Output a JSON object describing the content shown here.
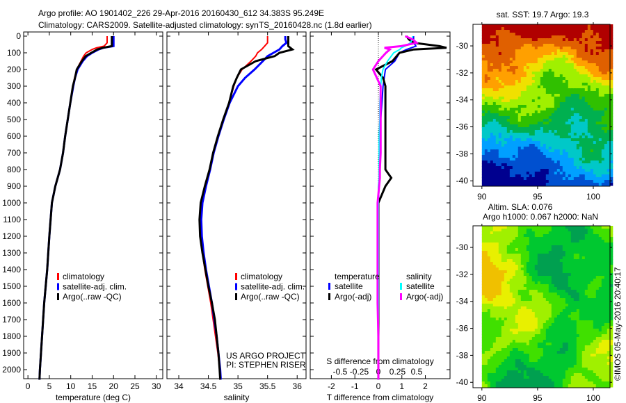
{
  "header": {
    "line1": "Argo profile: AO 1901402_226 29-Apr-2016 20160430_612 34.383S 95.249E",
    "line2": "Climatology: CARS2009. Satellite-adjusted climatology: synTS_20160428.nc (1.8d earlier)"
  },
  "credits": {
    "project": "US ARGO PROJECT",
    "pi": "PI: STEPHEN RISER",
    "copyright": "©IMOS 05-May-2016 20:40:17"
  },
  "colors": {
    "clim": "#ff0000",
    "sat": "#0000ff",
    "argo": "#000000",
    "sat_s": "#00ffff",
    "argo_s": "#ff00ff"
  },
  "chart_data": [
    {
      "type": "line",
      "name": "temperature",
      "xlabel": "temperature (deg C)",
      "ylabel": "",
      "xlim": [
        -1,
        31.5
      ],
      "ylim": [
        2070,
        0
      ],
      "xticks": [
        0,
        5,
        10,
        15,
        20,
        25,
        30
      ],
      "yticks": [
        0,
        100,
        200,
        300,
        400,
        500,
        600,
        700,
        800,
        900,
        1000,
        1100,
        1200,
        1300,
        1400,
        1500,
        1600,
        1700,
        1800,
        1900,
        2000
      ],
      "depth": [
        0,
        20,
        40,
        60,
        70,
        80,
        100,
        120,
        150,
        200,
        250,
        300,
        400,
        500,
        600,
        700,
        800,
        900,
        1000,
        1200,
        1400,
        1600,
        1800,
        2000,
        2060
      ],
      "legend": [
        "climatology",
        "satellite-adj. clim.",
        "Argo(..raw -QC)"
      ],
      "series": [
        {
          "name": "climatology",
          "values": [
            18.5,
            18.5,
            18.5,
            17.8,
            16,
            15,
            13.6,
            13,
            12.4,
            11.4,
            10.9,
            10.5,
            9.9,
            9.3,
            8.7,
            8.2,
            7.5,
            6.4,
            5.6,
            5,
            4.5,
            3.8,
            3.3,
            2.8,
            2.7
          ]
        },
        {
          "name": "satellite-adj. clim.",
          "values": [
            20,
            20,
            20,
            20,
            17.6,
            16.5,
            15,
            13.8,
            12.8,
            11.6,
            11,
            10.6,
            9.9,
            9.3,
            8.7,
            8.2,
            7.5,
            6.4,
            5.6,
            5,
            4.5,
            3.8,
            3.3,
            2.8,
            2.7
          ]
        },
        {
          "name": "Argo(..raw -QC)",
          "values": [
            19.6,
            19.6,
            19.6,
            19.6,
            17.5,
            16.2,
            14.8,
            13.5,
            12.6,
            11.4,
            11,
            10.5,
            9.9,
            9.3,
            8.7,
            8.2,
            7.5,
            6.4,
            5.6,
            5,
            4.5,
            3.8,
            3.3,
            2.8,
            2.7
          ]
        }
      ]
    },
    {
      "type": "line",
      "name": "salinity",
      "xlabel": "salinity",
      "xlim": [
        33.8,
        36.15
      ],
      "ylim": [
        2070,
        0
      ],
      "xticks": [
        34,
        34.5,
        35,
        35.5,
        36
      ],
      "depth": [
        0,
        20,
        40,
        60,
        80,
        100,
        120,
        150,
        200,
        250,
        300,
        400,
        500,
        600,
        700,
        800,
        900,
        1000,
        1100,
        1200,
        1300,
        1400,
        1500,
        1600,
        1700,
        1800,
        1900,
        2000,
        2060
      ],
      "legend": [
        "climatology",
        "satellite-adj. clim.",
        "Argo(..raw -QC)"
      ],
      "series": [
        {
          "name": "climatology",
          "values": [
            35.5,
            35.5,
            35.5,
            35.45,
            35.4,
            35.33,
            35.3,
            35.22,
            35.07,
            34.98,
            34.93,
            34.85,
            34.75,
            34.66,
            34.58,
            34.52,
            34.45,
            34.38,
            34.36,
            34.37,
            34.4,
            34.44,
            34.49,
            34.54,
            34.58,
            34.62,
            34.66,
            34.69,
            34.7
          ]
        },
        {
          "name": "satellite-adj. clim.",
          "values": [
            35.8,
            35.8,
            35.82,
            35.75,
            35.7,
            35.6,
            35.5,
            35.42,
            35.28,
            35.12,
            35.0,
            34.86,
            34.76,
            34.67,
            34.59,
            34.53,
            34.46,
            34.4,
            34.38,
            34.39,
            34.42,
            34.46,
            34.51,
            34.56,
            34.6,
            34.64,
            34.67,
            34.7,
            34.71
          ]
        },
        {
          "name": "Argo(..raw -QC)",
          "values": [
            35.85,
            35.85,
            35.85,
            35.85,
            35.92,
            35.7,
            35.62,
            35.3,
            35.05,
            34.98,
            34.92,
            34.85,
            34.75,
            34.66,
            34.58,
            34.52,
            34.44,
            34.37,
            34.35,
            34.36,
            34.4,
            34.45,
            34.5,
            34.56,
            34.61,
            34.64,
            34.67,
            34.69,
            34.7
          ]
        }
      ]
    },
    {
      "type": "line",
      "name": "difference",
      "xlabel": "T difference from climatology",
      "x2label": "S difference from climatology",
      "xlim": [
        -2.9,
        3.05
      ],
      "xticks": [
        -2,
        -1,
        0,
        1,
        2
      ],
      "s_xticks": [
        -0.5,
        -0.25,
        0,
        0.25,
        0.5
      ],
      "s_xtick_labels": [
        "-0.5",
        "-0.25",
        "0",
        "0.25",
        "0.5"
      ],
      "depth": [
        0,
        20,
        40,
        60,
        70,
        80,
        100,
        150,
        200,
        250,
        300,
        400,
        500,
        600,
        700,
        800,
        850,
        900,
        1000,
        1200,
        1400,
        1600,
        1800,
        2000,
        2060
      ],
      "legend": {
        "temperature_title": "temperature",
        "salinity_title": "salinity",
        "items": [
          "satellite",
          "Argo(-adj)",
          "satellite",
          "Argo(-adj)"
        ]
      },
      "series": [
        {
          "name": "temperature satellite",
          "axis": "T",
          "values": [
            1.5,
            1.5,
            1.5,
            1.6,
            1.4,
            1.2,
            0.9,
            0.7,
            0.3,
            0.25,
            0.2,
            0.15,
            0.1,
            0.08,
            0.06,
            0.05,
            0.05,
            0.03,
            0,
            0,
            0,
            0,
            0,
            0,
            0
          ]
        },
        {
          "name": "temperature Argo(-adj)",
          "axis": "T",
          "values": [
            1.2,
            1.3,
            1.5,
            2.6,
            2.9,
            1.5,
            0.9,
            0.6,
            -0.1,
            0.2,
            0.3,
            0.3,
            0.3,
            0.3,
            0.3,
            0.3,
            0.55,
            0.3,
            0,
            0,
            0,
            0,
            0,
            0,
            0
          ]
        },
        {
          "name": "salinity satellite",
          "axis": "S",
          "values": [
            0.45,
            0.44,
            0.42,
            0.35,
            0.3,
            0.28,
            0.2,
            0.12,
            0.06,
            0.04,
            0.03,
            0.02,
            0.02,
            0.01,
            0.01,
            0.01,
            0.01,
            0,
            0,
            0,
            0,
            0,
            0,
            0,
            0
          ]
        },
        {
          "name": "salinity Argo(-adj)",
          "axis": "S",
          "values": [
            0.35,
            0.45,
            0.5,
            0.3,
            0.08,
            0.15,
            0.1,
            0.0,
            -0.07,
            -0.02,
            0.03,
            0.03,
            0.03,
            0.03,
            0.03,
            0.02,
            0.02,
            0.01,
            -0.01,
            -0.01,
            -0.01,
            -0.01,
            0,
            0,
            0
          ]
        }
      ]
    },
    {
      "type": "heatmap",
      "name": "sst-map",
      "title": "sat. SST: 19.7 Argo: 19.3",
      "xticks": [
        90,
        95,
        100
      ],
      "yticks": [
        -30,
        -32,
        -34,
        -36,
        -38,
        -40
      ],
      "xlim": [
        89.2,
        101.5
      ],
      "ylim": [
        -40.4,
        -28.4
      ],
      "colormap": [
        "#00008f",
        "#0050d0",
        "#00a0ff",
        "#00c8c8",
        "#00b050",
        "#30c000",
        "#a0f000",
        "#f0e000",
        "#ffa000",
        "#e06000",
        "#b00000"
      ]
    },
    {
      "type": "heatmap",
      "name": "sla-map",
      "title": "Altim. SLA: 0.076",
      "subtitle": "Argo h1000: 0.067 h2000: NaN",
      "xticks": [
        90,
        95,
        100
      ],
      "yticks": [
        -30,
        -32,
        -34,
        -36,
        -38,
        -40
      ],
      "xlim": [
        89.2,
        101.5
      ],
      "ylim": [
        -40.4,
        -28.4
      ],
      "colormap": [
        "#00a050",
        "#00c830",
        "#40e000",
        "#a0f000",
        "#e8f000",
        "#f0c000"
      ]
    }
  ]
}
